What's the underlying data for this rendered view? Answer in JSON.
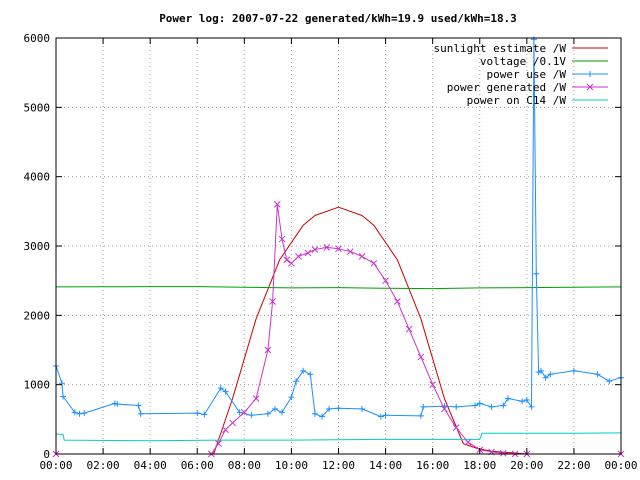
{
  "chart_data": {
    "type": "line",
    "title": "Power log: 2007-07-22 generated/kWh=19.9 used/kWh=18.3",
    "xlabel": "",
    "ylabel": "",
    "xlim": [
      "00:00",
      "24:00"
    ],
    "ylim": [
      0,
      6000
    ],
    "grid": true,
    "legend_position": "top-right",
    "x_ticks": [
      "00:00",
      "02:00",
      "04:00",
      "06:00",
      "08:00",
      "10:00",
      "12:00",
      "14:00",
      "16:00",
      "18:00",
      "20:00",
      "22:00",
      "00:00"
    ],
    "y_ticks": [
      "0",
      "1000",
      "2000",
      "3000",
      "4000",
      "5000",
      "6000"
    ],
    "series": [
      {
        "name": "sunlight estimate /W",
        "color": "#cc0000",
        "style": "line",
        "x_hours": [
          0,
          6.7,
          7.5,
          8.5,
          9.5,
          10.5,
          11.0,
          12.0,
          13.0,
          13.5,
          14.5,
          15.5,
          16.5,
          17.3,
          17.9,
          18.5,
          20.0,
          22.0,
          24.0
        ],
        "values": [
          0,
          0,
          800,
          1950,
          2800,
          3300,
          3440,
          3560,
          3440,
          3300,
          2800,
          1950,
          800,
          150,
          80,
          40,
          0,
          0,
          0
        ]
      },
      {
        "name": "voltage /0.1V",
        "color": "#00a000",
        "style": "line",
        "x_hours": [
          0,
          2,
          4,
          6,
          8,
          10,
          12,
          14,
          16,
          18,
          20,
          22,
          24
        ],
        "values": [
          2410,
          2412,
          2414,
          2415,
          2405,
          2395,
          2400,
          2390,
          2385,
          2395,
          2400,
          2405,
          2410
        ]
      },
      {
        "name": "power use /W",
        "color": "#1e90ff",
        "style": "line-points",
        "marker": "+",
        "x_hours": [
          0,
          0.25,
          0.3,
          0.8,
          1.0,
          1.2,
          2.5,
          2.6,
          3.5,
          3.6,
          6.0,
          6.3,
          7.0,
          7.2,
          7.8,
          8.3,
          9.0,
          9.3,
          9.6,
          10.0,
          10.2,
          10.5,
          10.8,
          11.0,
          11.3,
          11.6,
          12.0,
          13.0,
          13.8,
          14.0,
          15.5,
          15.6,
          16.5,
          17.0,
          17.8,
          18.0,
          18.5,
          19.0,
          19.2,
          19.8,
          20.0,
          20.2,
          20.3,
          20.4,
          20.5,
          20.6,
          20.8,
          21.0,
          22.0,
          23.0,
          23.5,
          24.0
        ],
        "values": [
          1270,
          1020,
          830,
          600,
          580,
          590,
          730,
          720,
          700,
          580,
          590,
          570,
          950,
          900,
          600,
          560,
          580,
          650,
          600,
          820,
          1050,
          1200,
          1150,
          580,
          540,
          650,
          660,
          650,
          540,
          560,
          550,
          680,
          690,
          680,
          700,
          730,
          680,
          700,
          800,
          760,
          780,
          680,
          5980,
          2600,
          1180,
          1200,
          1100,
          1150,
          1200,
          1150,
          1050,
          1100
        ]
      },
      {
        "name": "power generated /W",
        "color": "#cc33cc",
        "style": "line-points",
        "marker": "x",
        "x_hours": [
          0,
          6.6,
          6.9,
          7.2,
          7.5,
          8.0,
          8.5,
          9.0,
          9.2,
          9.4,
          9.6,
          9.8,
          10.0,
          10.3,
          10.7,
          11.0,
          11.5,
          12.0,
          12.5,
          13.0,
          13.5,
          14.0,
          14.5,
          15.0,
          15.5,
          16.0,
          16.5,
          17.0,
          17.5,
          18.0,
          18.5,
          19.0,
          19.5,
          20.0,
          24.0
        ],
        "values": [
          0,
          0,
          150,
          350,
          450,
          600,
          800,
          1500,
          2200,
          3600,
          3100,
          2800,
          2750,
          2850,
          2900,
          2950,
          2980,
          2960,
          2920,
          2850,
          2750,
          2500,
          2200,
          1800,
          1400,
          1000,
          650,
          380,
          170,
          60,
          30,
          10,
          0,
          0,
          0
        ]
      },
      {
        "name": "power on C14 /W",
        "color": "#00cccc",
        "style": "line",
        "x_hours": [
          0,
          0.3,
          0.35,
          4.0,
          7.0,
          10.0,
          14.0,
          17.5,
          18.0,
          18.1,
          22.0,
          24.0
        ],
        "values": [
          290,
          280,
          200,
          190,
          200,
          200,
          210,
          210,
          210,
          300,
          300,
          305
        ]
      }
    ]
  }
}
